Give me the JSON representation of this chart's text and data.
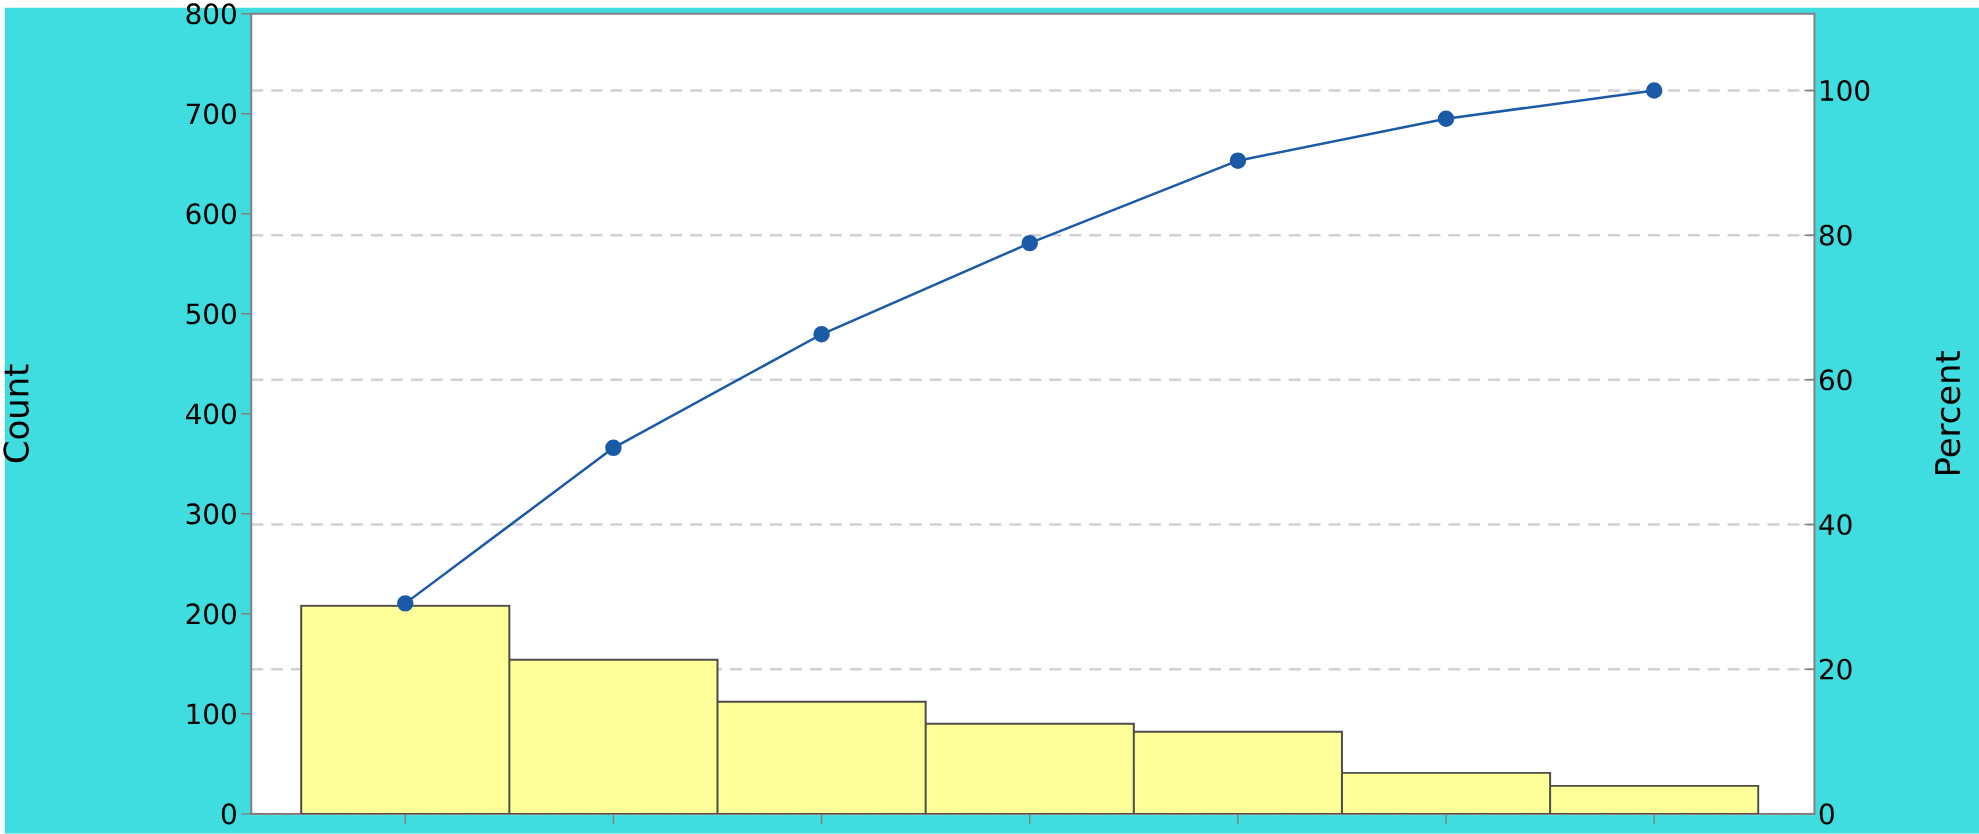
{
  "chart_data": {
    "type": "bar",
    "ylabel": "Count",
    "y2label": "Percent",
    "categories": [
      null,
      null,
      null,
      null,
      null,
      null,
      null
    ],
    "series": [
      {
        "color": "#ffff99",
        "values": [
          208,
          154,
          112,
          90,
          82,
          41,
          28
        ]
      },
      {
        "type": "line",
        "axis": "y2",
        "color": "#1a5aa6",
        "values": [
          29.1,
          50.6,
          66.3,
          78.9,
          90.3,
          96.1,
          100
        ]
      }
    ],
    "ylim": [
      0,
      800
    ],
    "yticks": [
      0,
      100,
      200,
      300,
      400,
      500,
      600,
      700,
      800
    ],
    "y2lim": [
      0,
      110.6
    ],
    "y2ticks": [
      0,
      20,
      40,
      60,
      80,
      100
    ],
    "grid": "y2",
    "marker": "circle",
    "line_style": "solid"
  }
}
